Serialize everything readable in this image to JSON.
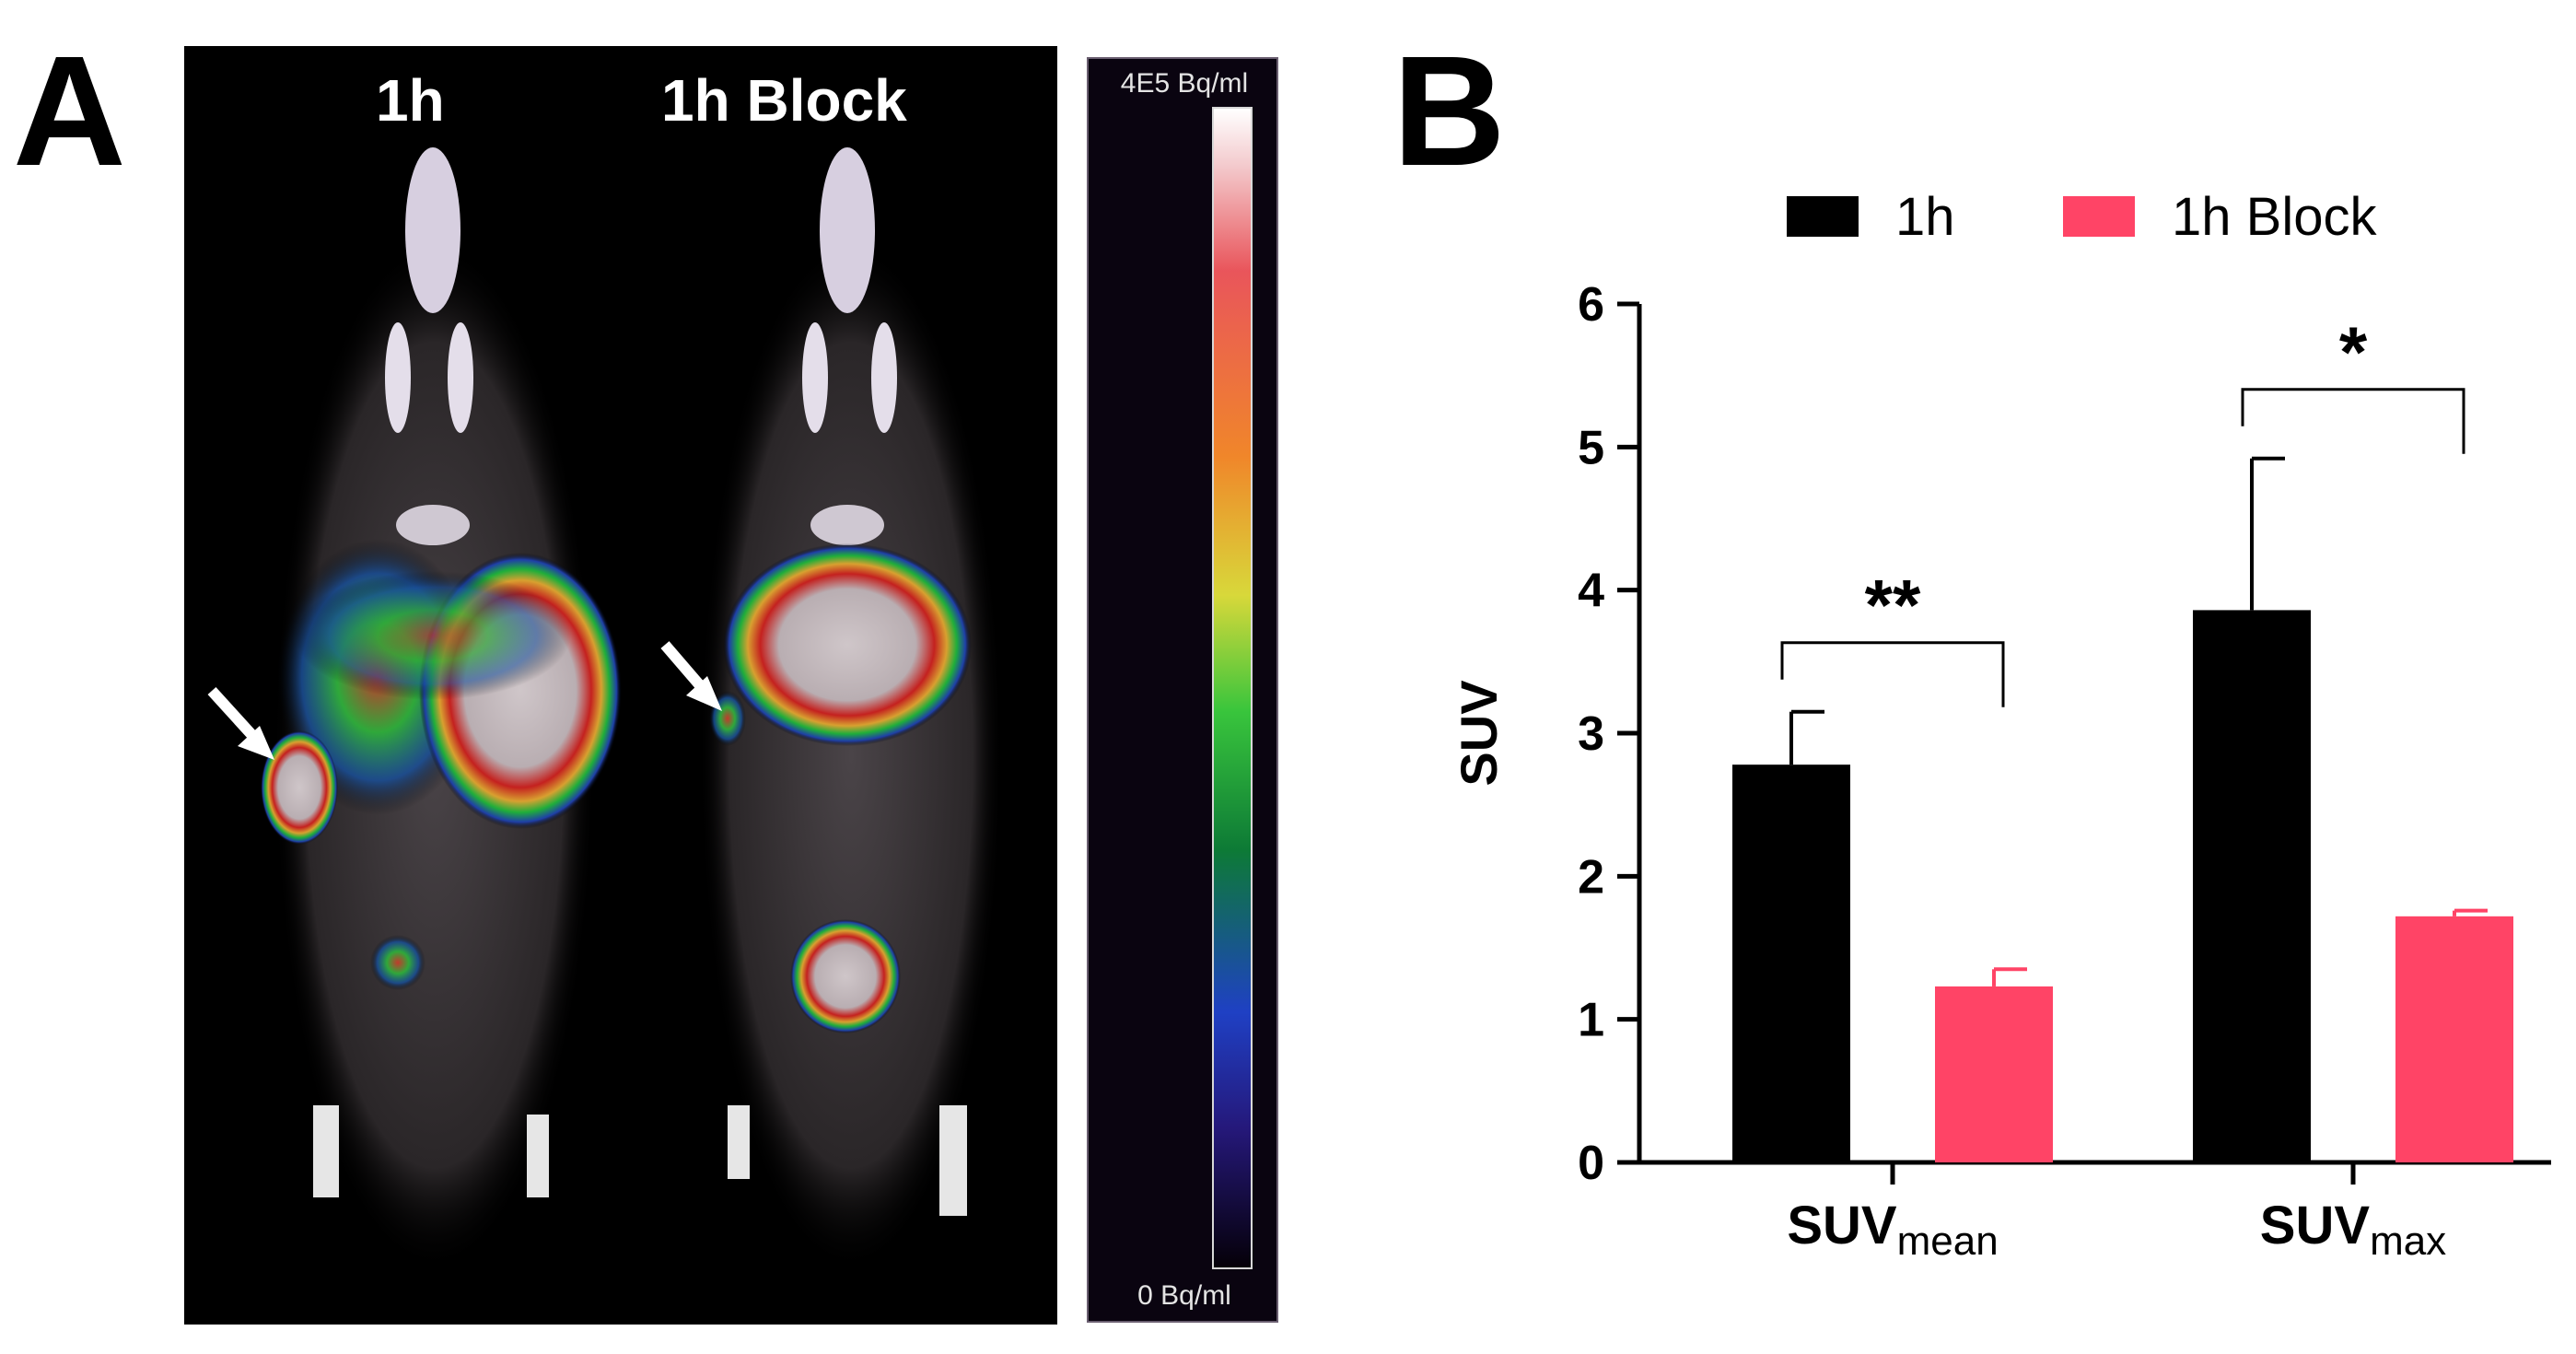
{
  "panels": {
    "a": "A",
    "b": "B"
  },
  "imaging": {
    "label_left": "1h",
    "label_right": "1h Block",
    "scale_max": "4E5 Bq/ml",
    "scale_min": "0 Bq/ml",
    "arrow_icon": "white-arrow-icon"
  },
  "chart_data": {
    "type": "bar",
    "categories": [
      {
        "main": "SUV",
        "sub": "mean"
      },
      {
        "main": "SUV",
        "sub": "max"
      }
    ],
    "series": [
      {
        "name": "1h",
        "color": "#000000",
        "values": [
          2.78,
          3.86
        ],
        "errors": [
          0.37,
          1.06
        ]
      },
      {
        "name": "1h Block",
        "color": "#ff4466",
        "values": [
          1.23,
          1.72
        ],
        "errors": [
          0.12,
          0.04
        ]
      }
    ],
    "ylabel": "SUV",
    "ylim": [
      0,
      6
    ],
    "yticks": [
      "0",
      "1",
      "2",
      "3",
      "4",
      "5",
      "6"
    ],
    "significance": [
      "**",
      "*"
    ],
    "legend_position": "top",
    "grid": false
  }
}
